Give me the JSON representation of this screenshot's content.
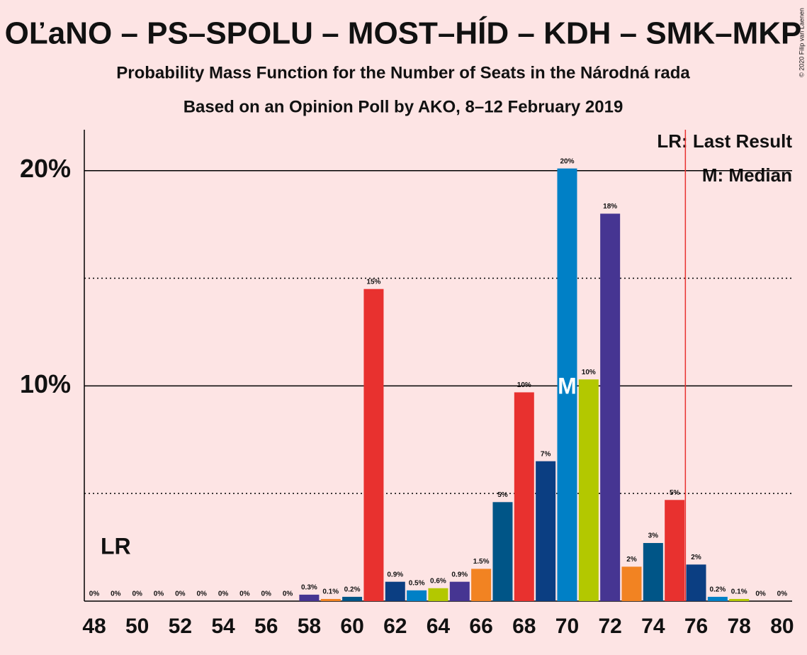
{
  "chart_data": {
    "type": "bar",
    "title": "OĽaNO – PS–SPOLU – MOST–HÍD – KDH – SMK–MKP",
    "subtitle": "Probability Mass Function for the Number of Seats in the Národná rada",
    "subtitle2": "Based on an Opinion Poll by AKO, 8–12 February 2019",
    "copyright": "© 2020 Filip van Laenen",
    "legend": [
      "LR: Last Result",
      "M: Median"
    ],
    "last_result_label": "LR",
    "last_result": 49,
    "median_label": "M",
    "median": 70,
    "majority_line": 75.5,
    "categories": [
      48,
      null,
      50,
      null,
      52,
      null,
      54,
      null,
      56,
      null,
      58,
      null,
      60,
      null,
      62,
      null,
      64,
      null,
      66,
      null,
      68,
      null,
      70,
      null,
      72,
      null,
      74,
      null,
      76,
      null,
      78,
      null,
      80
    ],
    "values": [
      0,
      0,
      0,
      0,
      0,
      0,
      0,
      0,
      0,
      0,
      0.3,
      0.1,
      0.2,
      14.5,
      0.9,
      0.5,
      0.6,
      0.9,
      1.5,
      4.6,
      9.7,
      6.5,
      20.1,
      10.3,
      18.0,
      1.6,
      2.7,
      4.7,
      1.7,
      0.2,
      0.1,
      0,
      0
    ],
    "value_labels": [
      "0%",
      "0%",
      "0%",
      "0%",
      "0%",
      "0%",
      "0%",
      "0%",
      "0%",
      "0%",
      "0.3%",
      "0.1%",
      "0.2%",
      "15%",
      "0.9%",
      "0.5%",
      "0.6%",
      "0.9%",
      "1.5%",
      "5%",
      "10%",
      "7%",
      "20%",
      "10%",
      "18%",
      "2%",
      "3%",
      "5%",
      "2%",
      "0.2%",
      "0.1%",
      "0%",
      "0%"
    ],
    "colors": [
      "#0b3e82",
      "#0080c6",
      "#b3c800",
      "#463592",
      "#f28322",
      "#005587",
      "#e8312f"
    ],
    "ylim": [
      0,
      21.9
    ],
    "yticks": [
      {
        "value": 10,
        "label": "10%"
      },
      {
        "value": 20,
        "label": "20%"
      }
    ],
    "minor_yticks": [
      5,
      15
    ],
    "grid": true
  }
}
